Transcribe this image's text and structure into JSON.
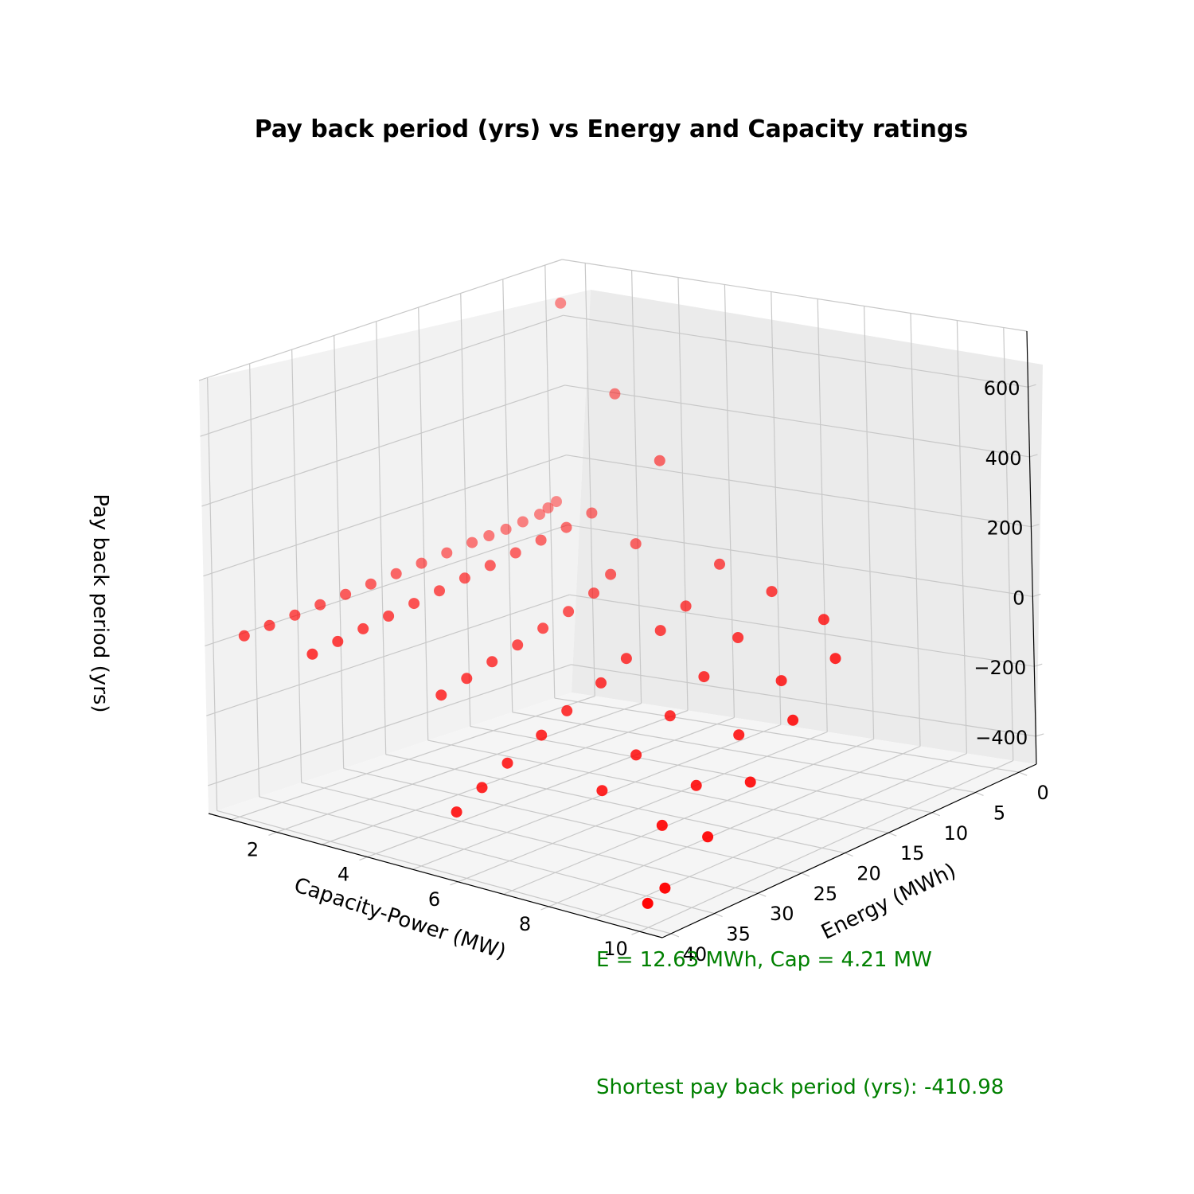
{
  "chart_data": {
    "type": "scatter",
    "projection": "3d",
    "title": "Pay back period (yrs) vs Energy and Capacity ratings",
    "xlabel": "Capacity-Power (MW)",
    "ylabel": "Energy (MWh)",
    "zlabel": "Pay back period (yrs)",
    "x_ticks": [
      "2",
      "4",
      "6",
      "8",
      "10"
    ],
    "y_ticks": [
      "0",
      "5",
      "10",
      "15",
      "20",
      "25",
      "30",
      "35",
      "40"
    ],
    "z_ticks": [
      "600",
      "400",
      "200",
      "0",
      "−200",
      "−400"
    ],
    "xlim": [
      0.5,
      10.5
    ],
    "ylim": [
      -2,
      41
    ],
    "zlim": [
      -480,
      760
    ],
    "grid": true,
    "marker_color": "#ff0000",
    "annotations": [
      "E = 12.63 MWh, Cap = 4.21 MW",
      "Shortest pay back period (yrs): -410.98"
    ],
    "points": [
      {
        "x": 1,
        "y": 1,
        "z": 670
      },
      {
        "x": 1,
        "y": 2,
        "z": 110
      },
      {
        "x": 1,
        "y": 3,
        "z": 100
      },
      {
        "x": 1,
        "y": 4,
        "z": 90
      },
      {
        "x": 1,
        "y": 6,
        "z": 85
      },
      {
        "x": 1,
        "y": 8,
        "z": 80
      },
      {
        "x": 1,
        "y": 10,
        "z": 78
      },
      {
        "x": 1,
        "y": 12,
        "z": 75
      },
      {
        "x": 1,
        "y": 15,
        "z": 70
      },
      {
        "x": 1,
        "y": 18,
        "z": 65
      },
      {
        "x": 1,
        "y": 21,
        "z": 60
      },
      {
        "x": 1,
        "y": 24,
        "z": 55
      },
      {
        "x": 1,
        "y": 27,
        "z": 50
      },
      {
        "x": 1,
        "y": 30,
        "z": 45
      },
      {
        "x": 1,
        "y": 33,
        "z": 40
      },
      {
        "x": 1,
        "y": 36,
        "z": 35
      },
      {
        "x": 1,
        "y": 39,
        "z": 30
      },
      {
        "x": 2.5,
        "y": 3,
        "z": 460
      },
      {
        "x": 2.5,
        "y": 6,
        "z": 145
      },
      {
        "x": 2.5,
        "y": 9,
        "z": 130
      },
      {
        "x": 2.5,
        "y": 12,
        "z": 120
      },
      {
        "x": 2.5,
        "y": 15,
        "z": 110
      },
      {
        "x": 2.5,
        "y": 18,
        "z": 100
      },
      {
        "x": 2.5,
        "y": 21,
        "z": 90
      },
      {
        "x": 2.5,
        "y": 24,
        "z": 80
      },
      {
        "x": 2.5,
        "y": 27,
        "z": 70
      },
      {
        "x": 2.5,
        "y": 30,
        "z": 60
      },
      {
        "x": 2.5,
        "y": 33,
        "z": 50
      },
      {
        "x": 2.5,
        "y": 36,
        "z": 40
      },
      {
        "x": 2.5,
        "y": 39,
        "z": 30
      },
      {
        "x": 4,
        "y": 6,
        "z": 330
      },
      {
        "x": 4,
        "y": 9,
        "z": 120
      },
      {
        "x": 4,
        "y": 12,
        "z": 60
      },
      {
        "x": 4,
        "y": 14,
        "z": 25
      },
      {
        "x": 4,
        "y": 17,
        "z": 0
      },
      {
        "x": 4,
        "y": 20,
        "z": -20
      },
      {
        "x": 4,
        "y": 23,
        "z": -40
      },
      {
        "x": 4,
        "y": 26,
        "z": -60
      },
      {
        "x": 4,
        "y": 29,
        "z": -80
      },
      {
        "x": 4,
        "y": 32,
        "z": -100
      },
      {
        "x": 6,
        "y": 10,
        "z": 120
      },
      {
        "x": 6,
        "y": 14,
        "z": 40
      },
      {
        "x": 6,
        "y": 17,
        "z": 0
      },
      {
        "x": 6,
        "y": 21,
        "z": -40
      },
      {
        "x": 6,
        "y": 24,
        "z": -80
      },
      {
        "x": 6,
        "y": 28,
        "z": -120
      },
      {
        "x": 6,
        "y": 31,
        "z": -160
      },
      {
        "x": 6,
        "y": 35,
        "z": -200
      },
      {
        "x": 6,
        "y": 38,
        "z": -240
      },
      {
        "x": 6,
        "y": 41,
        "z": -280
      },
      {
        "x": 7.5,
        "y": 12,
        "z": 100
      },
      {
        "x": 7.5,
        "y": 16,
        "z": 10
      },
      {
        "x": 7.5,
        "y": 20,
        "z": -60
      },
      {
        "x": 7.5,
        "y": 24,
        "z": -130
      },
      {
        "x": 7.5,
        "y": 28,
        "z": -200
      },
      {
        "x": 7.5,
        "y": 32,
        "z": -260
      },
      {
        "x": 9,
        "y": 14,
        "z": 80
      },
      {
        "x": 9,
        "y": 19,
        "z": -40
      },
      {
        "x": 9,
        "y": 24,
        "z": -140
      },
      {
        "x": 9,
        "y": 29,
        "z": -230
      },
      {
        "x": 9,
        "y": 33,
        "z": -300
      },
      {
        "x": 10,
        "y": 18,
        "z": 40
      },
      {
        "x": 10,
        "y": 23,
        "z": -80
      },
      {
        "x": 10,
        "y": 28,
        "z": -200
      },
      {
        "x": 10,
        "y": 33,
        "z": -300
      },
      {
        "x": 10,
        "y": 38,
        "z": -390
      },
      {
        "x": 10,
        "y": 40,
        "z": -410.98
      }
    ]
  }
}
